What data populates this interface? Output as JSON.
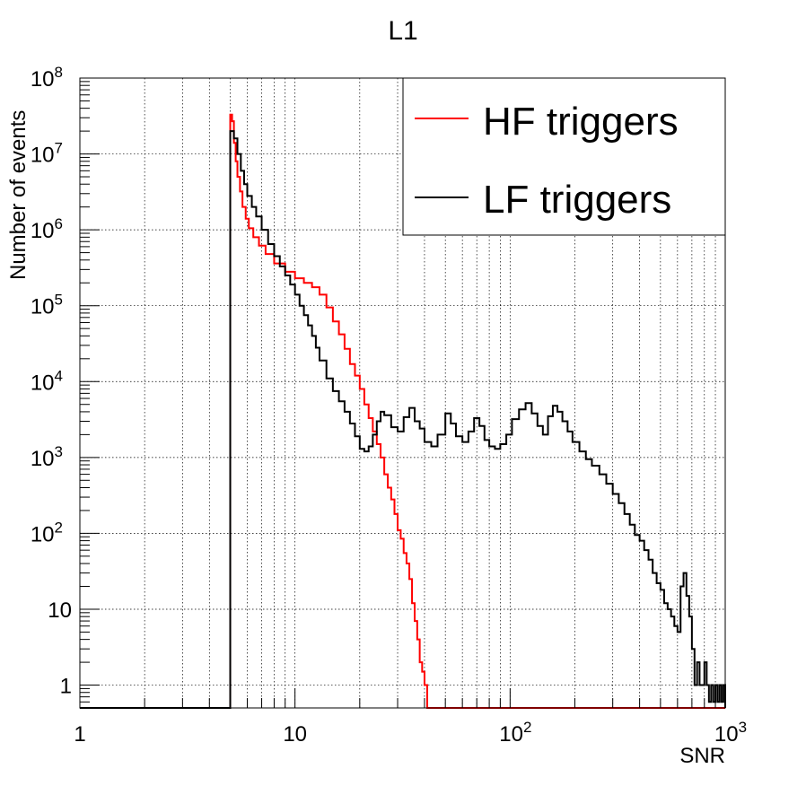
{
  "chart_data": {
    "type": "line",
    "title": "L1",
    "xlabel": "SNR",
    "ylabel": "Number of events",
    "x_scale": "log",
    "y_scale": "log",
    "xlim": [
      1,
      1000
    ],
    "ylim": [
      0.5,
      100000000
    ],
    "grid": true,
    "legend_position": "top-right",
    "x_ticks": [
      {
        "value": 1,
        "base": "1",
        "exp": ""
      },
      {
        "value": 10,
        "base": "10",
        "exp": ""
      },
      {
        "value": 100,
        "base": "10",
        "exp": "2"
      },
      {
        "value": 1000,
        "base": "10",
        "exp": "3"
      }
    ],
    "y_ticks": [
      {
        "value": 1,
        "base": "1",
        "exp": ""
      },
      {
        "value": 10,
        "base": "10",
        "exp": ""
      },
      {
        "value": 100,
        "base": "10",
        "exp": "2"
      },
      {
        "value": 1000,
        "base": "10",
        "exp": "3"
      },
      {
        "value": 10000,
        "base": "10",
        "exp": "4"
      },
      {
        "value": 100000,
        "base": "10",
        "exp": "5"
      },
      {
        "value": 1000000,
        "base": "10",
        "exp": "6"
      },
      {
        "value": 10000000,
        "base": "10",
        "exp": "7"
      },
      {
        "value": 100000000,
        "base": "10",
        "exp": "8"
      }
    ],
    "series": [
      {
        "name": "HF triggers",
        "color": "#ff0000",
        "points": [
          [
            5.0,
            33000000
          ],
          [
            5.1,
            27000000
          ],
          [
            5.2,
            14000000
          ],
          [
            5.3,
            8000000
          ],
          [
            5.4,
            5000000
          ],
          [
            5.55,
            3200000
          ],
          [
            5.7,
            2000000
          ],
          [
            5.9,
            1400000
          ],
          [
            6.1,
            1050000
          ],
          [
            6.4,
            800000
          ],
          [
            6.8,
            620000
          ],
          [
            7.3,
            480000
          ],
          [
            8.0,
            360000
          ],
          [
            9.0,
            280000
          ],
          [
            10.0,
            230000
          ],
          [
            11.0,
            200000
          ],
          [
            12.0,
            175000
          ],
          [
            13.0,
            140000
          ],
          [
            14.0,
            95000
          ],
          [
            15.0,
            62000
          ],
          [
            16.0,
            42000
          ],
          [
            17.0,
            27000
          ],
          [
            18.0,
            17000
          ],
          [
            19.0,
            12000
          ],
          [
            20.0,
            8000
          ],
          [
            21.0,
            5000
          ],
          [
            22.0,
            3300
          ],
          [
            23.0,
            2200
          ],
          [
            24.0,
            1500
          ],
          [
            25.0,
            1000
          ],
          [
            26.0,
            600
          ],
          [
            27.0,
            400
          ],
          [
            28.0,
            280
          ],
          [
            29.0,
            180
          ],
          [
            30.0,
            110
          ],
          [
            31.0,
            85
          ],
          [
            32.0,
            55
          ],
          [
            33.0,
            40
          ],
          [
            34.0,
            25
          ],
          [
            35.0,
            12
          ],
          [
            36.0,
            7
          ],
          [
            37.0,
            4
          ],
          [
            38.0,
            2
          ],
          [
            39.0,
            1.5
          ],
          [
            40.0,
            1
          ]
        ]
      },
      {
        "name": "LF triggers",
        "color": "#000000",
        "points": [
          [
            5.0,
            20000000
          ],
          [
            5.2,
            16000000
          ],
          [
            5.4,
            10000000
          ],
          [
            5.6,
            6000000
          ],
          [
            5.8,
            4000000
          ],
          [
            6.0,
            2800000
          ],
          [
            6.3,
            2000000
          ],
          [
            6.6,
            1500000
          ],
          [
            7.0,
            1000000
          ],
          [
            7.5,
            650000
          ],
          [
            8.0,
            450000
          ],
          [
            8.5,
            330000
          ],
          [
            9.0,
            250000
          ],
          [
            9.5,
            190000
          ],
          [
            10.0,
            140000
          ],
          [
            10.5,
            100000
          ],
          [
            11.0,
            75000
          ],
          [
            11.5,
            55000
          ],
          [
            12.0,
            40000
          ],
          [
            12.5,
            28000
          ],
          [
            13.0,
            19000
          ],
          [
            14.0,
            11000
          ],
          [
            15.0,
            7500
          ],
          [
            16.0,
            5500
          ],
          [
            17.0,
            4000
          ],
          [
            18.0,
            2800
          ],
          [
            19.0,
            1900
          ],
          [
            20.0,
            1300
          ],
          [
            21.0,
            1200
          ],
          [
            22.0,
            1400
          ],
          [
            23.0,
            2000
          ],
          [
            24.0,
            3000
          ],
          [
            25.0,
            4000
          ],
          [
            26.0,
            3600
          ],
          [
            28.0,
            2500
          ],
          [
            30.0,
            2200
          ],
          [
            32.0,
            3400
          ],
          [
            34.0,
            4500
          ],
          [
            36.0,
            3000
          ],
          [
            38.0,
            2400
          ],
          [
            40.0,
            1600
          ],
          [
            43.0,
            1400
          ],
          [
            46.0,
            2000
          ],
          [
            50.0,
            3800
          ],
          [
            53.0,
            2800
          ],
          [
            56.0,
            1900
          ],
          [
            60.0,
            1600
          ],
          [
            64.0,
            2200
          ],
          [
            68.0,
            3300
          ],
          [
            72.0,
            2600
          ],
          [
            76.0,
            1700
          ],
          [
            80.0,
            1400
          ],
          [
            85.0,
            1300
          ],
          [
            90.0,
            1500
          ],
          [
            96.0,
            2000
          ],
          [
            102.0,
            3200
          ],
          [
            110.0,
            4300
          ],
          [
            118.0,
            5200
          ],
          [
            126.0,
            3800
          ],
          [
            134.0,
            2600
          ],
          [
            142.0,
            2000
          ],
          [
            150.0,
            3500
          ],
          [
            158.0,
            4800
          ],
          [
            166.0,
            4000
          ],
          [
            175.0,
            3000
          ],
          [
            185.0,
            2200
          ],
          [
            195.0,
            1600
          ],
          [
            210.0,
            1200
          ],
          [
            225.0,
            950
          ],
          [
            240.0,
            780
          ],
          [
            260.0,
            600
          ],
          [
            280.0,
            450
          ],
          [
            300.0,
            330
          ],
          [
            320.0,
            250
          ],
          [
            340.0,
            180
          ],
          [
            360.0,
            130
          ],
          [
            380.0,
            95
          ],
          [
            400.0,
            80
          ],
          [
            420.0,
            60
          ],
          [
            440.0,
            45
          ],
          [
            460.0,
            30
          ],
          [
            480.0,
            22
          ],
          [
            500.0,
            18
          ],
          [
            520.0,
            12
          ],
          [
            540.0,
            10
          ],
          [
            560.0,
            8
          ],
          [
            580.0,
            6
          ],
          [
            600.0,
            5
          ],
          [
            620.0,
            20
          ],
          [
            640.0,
            30
          ],
          [
            660.0,
            15
          ],
          [
            680.0,
            8
          ],
          [
            700.0,
            3
          ],
          [
            720.0,
            1
          ],
          [
            740.0,
            2
          ],
          [
            760.0,
            1
          ],
          [
            780.0,
            1
          ],
          [
            800.0,
            2
          ],
          [
            820.0,
            1
          ],
          [
            840.0,
            0.6
          ],
          [
            860.0,
            1
          ],
          [
            880.0,
            0.6
          ],
          [
            900.0,
            1
          ],
          [
            920.0,
            0.6
          ],
          [
            940.0,
            1
          ],
          [
            960.0,
            0.6
          ],
          [
            980.0,
            1
          ]
        ]
      }
    ]
  }
}
